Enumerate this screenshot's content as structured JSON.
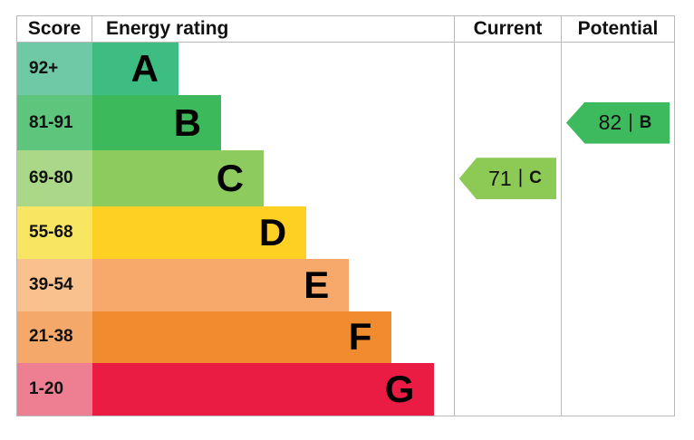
{
  "chart_data": {
    "type": "bar",
    "title": "EPC energy efficiency rating chart",
    "legend_position": "none",
    "grid": false,
    "headers": {
      "score": "Score",
      "energy_rating": "Energy rating",
      "current": "Current",
      "potential": "Potential"
    },
    "separator": "|",
    "bands": [
      {
        "score": "92+",
        "letter": "A",
        "bar_color": "#3dbd82",
        "score_cell_color": "#6fc8a6",
        "bar_width": "23.8%"
      },
      {
        "score": "81-91",
        "letter": "B",
        "bar_color": "#3cba5b",
        "score_cell_color": "#5ec57c",
        "bar_width": "35.6%"
      },
      {
        "score": "69-80",
        "letter": "C",
        "bar_color": "#8ecb5e",
        "score_cell_color": "#aad788",
        "bar_width": "47.4%"
      },
      {
        "score": "55-68",
        "letter": "D",
        "bar_color": "#fdd021",
        "score_cell_color": "#f8e663",
        "bar_width": "59.2%"
      },
      {
        "score": "39-54",
        "letter": "E",
        "bar_color": "#f6a96a",
        "score_cell_color": "#f9c18d",
        "bar_width": "71.0%"
      },
      {
        "score": "21-38",
        "letter": "F",
        "bar_color": "#f08b2f",
        "score_cell_color": "#f4a86a",
        "bar_width": "82.8%"
      },
      {
        "score": "1-20",
        "letter": "G",
        "bar_color": "#ea1c44",
        "score_cell_color": "#ee7e91",
        "bar_width": "94.6%"
      }
    ],
    "current": {
      "value": "71",
      "band": "C",
      "color": "#8cca55"
    },
    "potential": {
      "value": "82",
      "band": "B",
      "color": "#3eba5e"
    }
  }
}
